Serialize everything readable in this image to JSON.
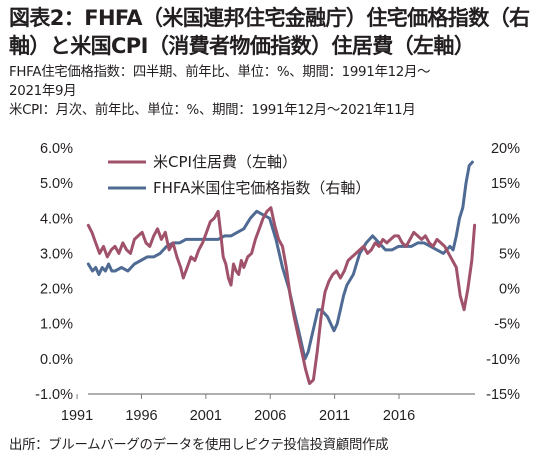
{
  "title_line1": "図表2：FHFA（米国連邦住宅金融庁）住宅価格指数（右",
  "title_line2": "軸）と米国CPI（消費者物価指数）住居費（左軸）",
  "notes": [
    "FHFA住宅価格指数：四半期、前年比、単位：%、期間：1991年12月～",
    "2021年9月",
    "米CPI：月次、前年比、単位：%、期間：1991年12月～2021年11月"
  ],
  "source": "出所：ブルームバーグのデータを使用しピクテ投信投資顧問作成",
  "chart_data": {
    "type": "line",
    "title": "",
    "xlabel": "",
    "ylabel_left": "",
    "ylabel_right": "",
    "legend_position": "top-left",
    "grid": false,
    "x_ticks": [
      1991,
      1996,
      2001,
      2006,
      2011,
      2016
    ],
    "x_tick_labels": [
      "1991",
      "1996",
      "2001",
      "2006",
      "2011",
      "2016"
    ],
    "xlim": [
      1991.9,
      2021.95
    ],
    "y_left": {
      "lim": [
        -1.0,
        6.0
      ],
      "ticks": [
        -1,
        0,
        1,
        2,
        3,
        4,
        5,
        6
      ],
      "tick_labels": [
        "-1.0%",
        "0.0%",
        "1.0%",
        "2.0%",
        "3.0%",
        "4.0%",
        "5.0%",
        "6.0%"
      ]
    },
    "y_right": {
      "lim": [
        -15,
        20
      ],
      "ticks": [
        -15,
        -10,
        -5,
        0,
        5,
        10,
        15,
        20
      ],
      "tick_labels": [
        "-15%",
        "-10%",
        "-5%",
        "0%",
        "5%",
        "10%",
        "15%",
        "20%"
      ]
    },
    "series": [
      {
        "name": "米CPI住居費（左軸）",
        "axis": "left",
        "color": "#a0526a",
        "x": [
          1991.92,
          1992.2,
          1992.5,
          1992.8,
          1993.1,
          1993.4,
          1993.7,
          1994.0,
          1994.3,
          1994.6,
          1994.9,
          1995.2,
          1995.5,
          1995.8,
          1996.1,
          1996.4,
          1996.7,
          1997.0,
          1997.3,
          1997.6,
          1997.9,
          1998.2,
          1998.5,
          1998.8,
          1999.1,
          1999.3,
          1999.6,
          1999.9,
          2000.2,
          2000.5,
          2000.8,
          2001.1,
          2001.4,
          2001.7,
          2002.0,
          2002.2,
          2002.4,
          2002.6,
          2002.8,
          2003.0,
          2003.2,
          2003.4,
          2003.6,
          2003.8,
          2004.0,
          2004.3,
          2004.6,
          2004.9,
          2005.2,
          2005.5,
          2005.8,
          2006.1,
          2006.4,
          2006.7,
          2007.0,
          2007.3,
          2007.6,
          2007.9,
          2008.2,
          2008.5,
          2008.8,
          2009.1,
          2009.4,
          2009.7,
          2010.0,
          2010.3,
          2010.6,
          2010.9,
          2011.2,
          2011.5,
          2011.8,
          2012.1,
          2012.4,
          2012.7,
          2013.0,
          2013.3,
          2013.6,
          2013.9,
          2014.2,
          2014.5,
          2014.8,
          2015.1,
          2015.4,
          2015.7,
          2016.0,
          2016.3,
          2016.6,
          2016.9,
          2017.2,
          2017.5,
          2017.8,
          2018.1,
          2018.4,
          2018.7,
          2019.0,
          2019.3,
          2019.6,
          2019.9,
          2020.2,
          2020.5,
          2020.8,
          2021.1,
          2021.4,
          2021.7,
          2021.92
        ],
        "values": [
          3.8,
          3.6,
          3.3,
          3.0,
          3.2,
          2.9,
          3.1,
          3.2,
          3.0,
          3.3,
          3.1,
          3.0,
          3.4,
          3.5,
          3.6,
          3.3,
          3.2,
          3.5,
          3.7,
          3.4,
          3.6,
          3.1,
          3.3,
          2.9,
          2.6,
          2.3,
          2.6,
          2.9,
          2.8,
          3.1,
          3.3,
          3.6,
          3.9,
          4.0,
          4.2,
          3.6,
          2.9,
          2.7,
          2.3,
          2.1,
          2.7,
          2.5,
          2.4,
          2.8,
          2.6,
          2.9,
          3.0,
          3.4,
          3.7,
          4.0,
          4.2,
          4.3,
          3.8,
          3.4,
          3.2,
          2.6,
          1.8,
          1.2,
          0.7,
          0.2,
          -0.3,
          -0.7,
          -0.6,
          0.2,
          1.2,
          1.9,
          2.2,
          2.4,
          2.5,
          2.3,
          2.5,
          2.8,
          2.9,
          3.0,
          3.1,
          3.2,
          3.0,
          3.1,
          3.3,
          3.2,
          3.4,
          3.3,
          3.4,
          3.5,
          3.5,
          3.3,
          3.2,
          3.4,
          3.6,
          3.5,
          3.4,
          3.5,
          3.3,
          3.2,
          3.4,
          3.3,
          3.2,
          3.0,
          2.8,
          2.6,
          1.8,
          1.4,
          2.0,
          2.8,
          3.8
        ]
      },
      {
        "name": "FHFA米国住宅価格指数（右軸）",
        "axis": "right",
        "color": "#4f6b93",
        "x": [
          1991.92,
          1992.25,
          1992.5,
          1992.75,
          1993.0,
          1993.25,
          1993.5,
          1993.75,
          1994.0,
          1994.5,
          1995.0,
          1995.5,
          1996.0,
          1996.5,
          1997.0,
          1997.5,
          1998.0,
          1998.5,
          1999.0,
          1999.5,
          2000.0,
          2000.5,
          2001.0,
          2001.5,
          2002.0,
          2002.5,
          2003.0,
          2003.5,
          2004.0,
          2004.5,
          2005.0,
          2005.5,
          2006.0,
          2006.5,
          2007.0,
          2007.5,
          2008.0,
          2008.25,
          2008.5,
          2008.75,
          2009.0,
          2009.25,
          2009.5,
          2009.75,
          2010.0,
          2010.5,
          2011.0,
          2011.25,
          2011.5,
          2011.75,
          2012.0,
          2012.5,
          2013.0,
          2013.5,
          2014.0,
          2014.5,
          2015.0,
          2015.5,
          2016.0,
          2016.5,
          2017.0,
          2017.5,
          2018.0,
          2018.5,
          2019.0,
          2019.5,
          2020.0,
          2020.25,
          2020.5,
          2020.75,
          2021.0,
          2021.25,
          2021.5,
          2021.75
        ],
        "values": [
          3.5,
          2.5,
          3.0,
          2.0,
          3.0,
          2.5,
          3.5,
          2.5,
          2.5,
          3.0,
          2.5,
          3.5,
          4.0,
          4.5,
          4.5,
          5.0,
          6.0,
          6.5,
          6.5,
          7.0,
          7.0,
          7.0,
          7.0,
          7.0,
          7.0,
          7.5,
          7.5,
          8.0,
          8.5,
          10.0,
          11.0,
          10.5,
          10.0,
          7.0,
          3.0,
          0.0,
          -4.0,
          -6.0,
          -8.0,
          -10.0,
          -9.0,
          -7.0,
          -5.0,
          -3.0,
          -3.0,
          -4.0,
          -6.0,
          -5.0,
          -3.0,
          -1.0,
          0.5,
          2.0,
          5.0,
          6.5,
          7.5,
          6.5,
          5.5,
          5.5,
          6.0,
          6.0,
          6.0,
          6.5,
          6.5,
          6.0,
          5.5,
          5.0,
          6.0,
          5.5,
          7.5,
          10.0,
          11.5,
          15.0,
          17.5,
          18.0
        ]
      }
    ]
  }
}
